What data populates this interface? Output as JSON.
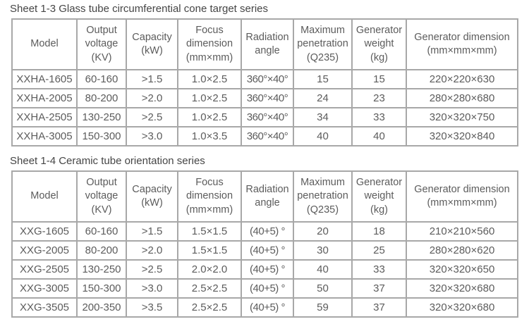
{
  "page": {
    "background_color": "#ffffff",
    "text_color": "#5c5c5c",
    "border_color": "#a8a8a8"
  },
  "table1": {
    "title": "Sheet 1-3 Glass tube circumferential cone target series",
    "headers": [
      "Model",
      "Output\nvoltage\n(KV)",
      "Capacity\n(kW)",
      "Focus\ndimension\n(mm×mm)",
      "Radiation\nangle",
      "Maximum\npenetration\n(Q235)",
      "Generator\nweight\n(kg)",
      "Generator dimension\n(mm×mm×mm)"
    ],
    "rows": [
      [
        "XXHA-1605",
        "60-160",
        ">1.5",
        "1.0×2.5",
        "360°×40°",
        "15",
        "15",
        "220×220×630"
      ],
      [
        "XXHA-2005",
        "80-200",
        ">2.0",
        "1.0×2.5",
        "360°×40°",
        "24",
        "23",
        "280×280×680"
      ],
      [
        "XXHA-2505",
        "130-250",
        ">2.5",
        "1.0×2.5",
        "360°×40°",
        "34",
        "33",
        "320×320×750"
      ],
      [
        "XXHA-3005",
        "150-300",
        ">3.0",
        "1.0×3.5",
        "360°×40°",
        "40",
        "40",
        "320×320×840"
      ]
    ]
  },
  "table2": {
    "title": "Sheet 1-4 Ceramic tube orientation series",
    "headers": [
      "Model",
      "Output\nvoltage\n(KV)",
      "Capacity\n(kW)",
      "Focus\ndimension\n(mm×mm)",
      "Radiation\nangle",
      "Maximum\npenetration\n(Q235)",
      "Generator\nweight\n(kg)",
      "Generator dimension\n(mm×mm×mm)"
    ],
    "rows": [
      [
        "XXG-1605",
        "60-160",
        ">1.5",
        "1.5×1.5",
        "(40+5) °",
        "20",
        "18",
        "210×210×560"
      ],
      [
        "XXG-2005",
        "80-200",
        ">2.0",
        "1.5×1.5",
        "(40+5) °",
        "30",
        "25",
        "280×280×620"
      ],
      [
        "XXG-2505",
        "130-250",
        ">2.5",
        "2.0×2.0",
        "(40+5) °",
        "40",
        "33",
        "320×320×650"
      ],
      [
        "XXG-3005",
        "150-300",
        ">3.0",
        "2.5×2.5",
        "(40+5) °",
        "50",
        "37",
        "320×320×680"
      ],
      [
        "XXG-3505",
        "200-350",
        ">3.5",
        "2.5×2.5",
        "(40+5) °",
        "59",
        "37",
        "320×320×680"
      ]
    ]
  }
}
